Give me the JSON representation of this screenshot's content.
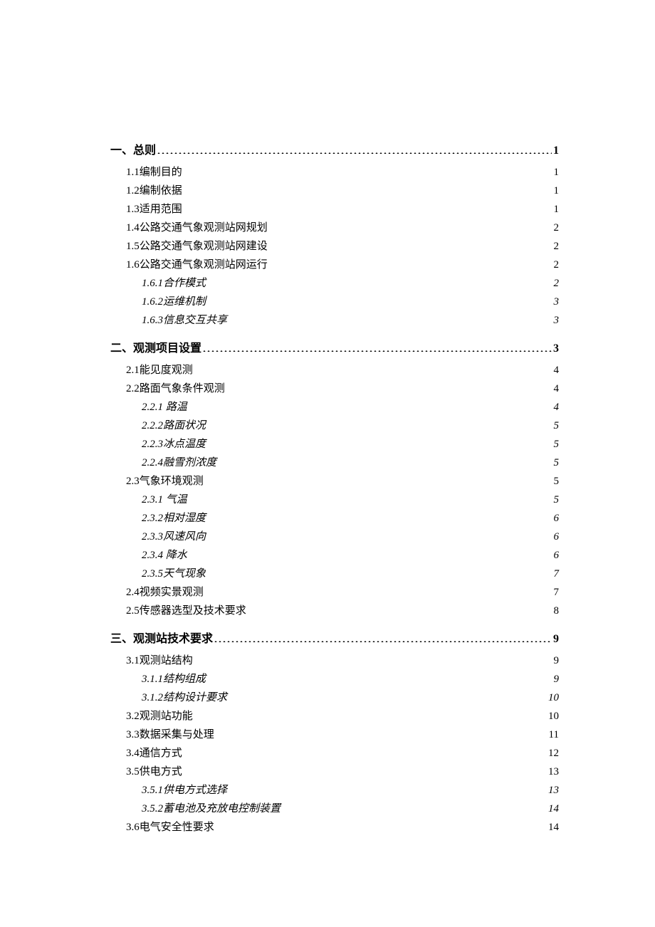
{
  "toc": [
    {
      "level": 1,
      "label": "一、总则",
      "page": "1",
      "newSection": true
    },
    {
      "level": 2,
      "label": "1.1编制目的",
      "page": "1"
    },
    {
      "level": 2,
      "label": "1.2编制依据",
      "page": "1"
    },
    {
      "level": 2,
      "label": "1.3适用范围",
      "page": "1"
    },
    {
      "level": 2,
      "label": "1.4公路交通气象观测站网规划",
      "page": "2"
    },
    {
      "level": 2,
      "label": "1.5公路交通气象观测站网建设",
      "page": "2"
    },
    {
      "level": 2,
      "label": "1.6公路交通气象观测站网运行",
      "page": "2"
    },
    {
      "level": 3,
      "label": "1.6.1合作模式",
      "page": "2"
    },
    {
      "level": 3,
      "label": "1.6.2运维机制",
      "page": "3"
    },
    {
      "level": 3,
      "label": "1.6.3信息交互共享",
      "page": "3"
    },
    {
      "level": 1,
      "label": "二、观测项目设置",
      "page": "3",
      "newSection": true
    },
    {
      "level": 2,
      "label": "2.1能见度观测",
      "page": "4"
    },
    {
      "level": 2,
      "label": "2.2路面气象条件观测",
      "page": "4"
    },
    {
      "level": 3,
      "label": "2.2.1  路温",
      "page": "4"
    },
    {
      "level": 3,
      "label": "2.2.2路面状况",
      "page": "5"
    },
    {
      "level": 3,
      "label": "2.2.3冰点温度",
      "page": "5"
    },
    {
      "level": 3,
      "label": "2.2.4融雪剂浓度",
      "page": "5"
    },
    {
      "level": 2,
      "label": "2.3气象环境观测",
      "page": "5"
    },
    {
      "level": 3,
      "label": "2.3.1  气温",
      "page": "5",
      "thinDots": true
    },
    {
      "level": 3,
      "label": "2.3.2相对湿度",
      "page": "6"
    },
    {
      "level": 3,
      "label": "2.3.3风速风向",
      "page": "6"
    },
    {
      "level": 3,
      "label": "2.3.4  降水",
      "page": "6",
      "thinDots": true
    },
    {
      "level": 3,
      "label": "2.3.5天气现象",
      "page": "7"
    },
    {
      "level": 2,
      "label": "2.4视频实景观测",
      "page": "7"
    },
    {
      "level": 2,
      "label": "2.5传感器选型及技术要求",
      "page": "8"
    },
    {
      "level": 1,
      "label": "三、观测站技术要求",
      "page": "9",
      "newSection": true
    },
    {
      "level": 2,
      "label": "3.1观测站结构",
      "page": "9"
    },
    {
      "level": 3,
      "label": "3.1.1结构组成",
      "page": "9"
    },
    {
      "level": 3,
      "label": "3.1.2结构设计要求",
      "page": "10"
    },
    {
      "level": 2,
      "label": "3.2观测站功能",
      "page": "10"
    },
    {
      "level": 2,
      "label": "3.3数据采集与处理",
      "page": "11"
    },
    {
      "level": 2,
      "label": "3.4通信方式",
      "page": "12"
    },
    {
      "level": 2,
      "label": "3.5供电方式",
      "page": "13"
    },
    {
      "level": 3,
      "label": "3.5.1供电方式选择",
      "page": "13"
    },
    {
      "level": 3,
      "label": "3.5.2蓄电池及充放电控制装置",
      "page": "14"
    },
    {
      "level": 2,
      "label": "3.6电气安全性要求",
      "page": "14"
    }
  ]
}
